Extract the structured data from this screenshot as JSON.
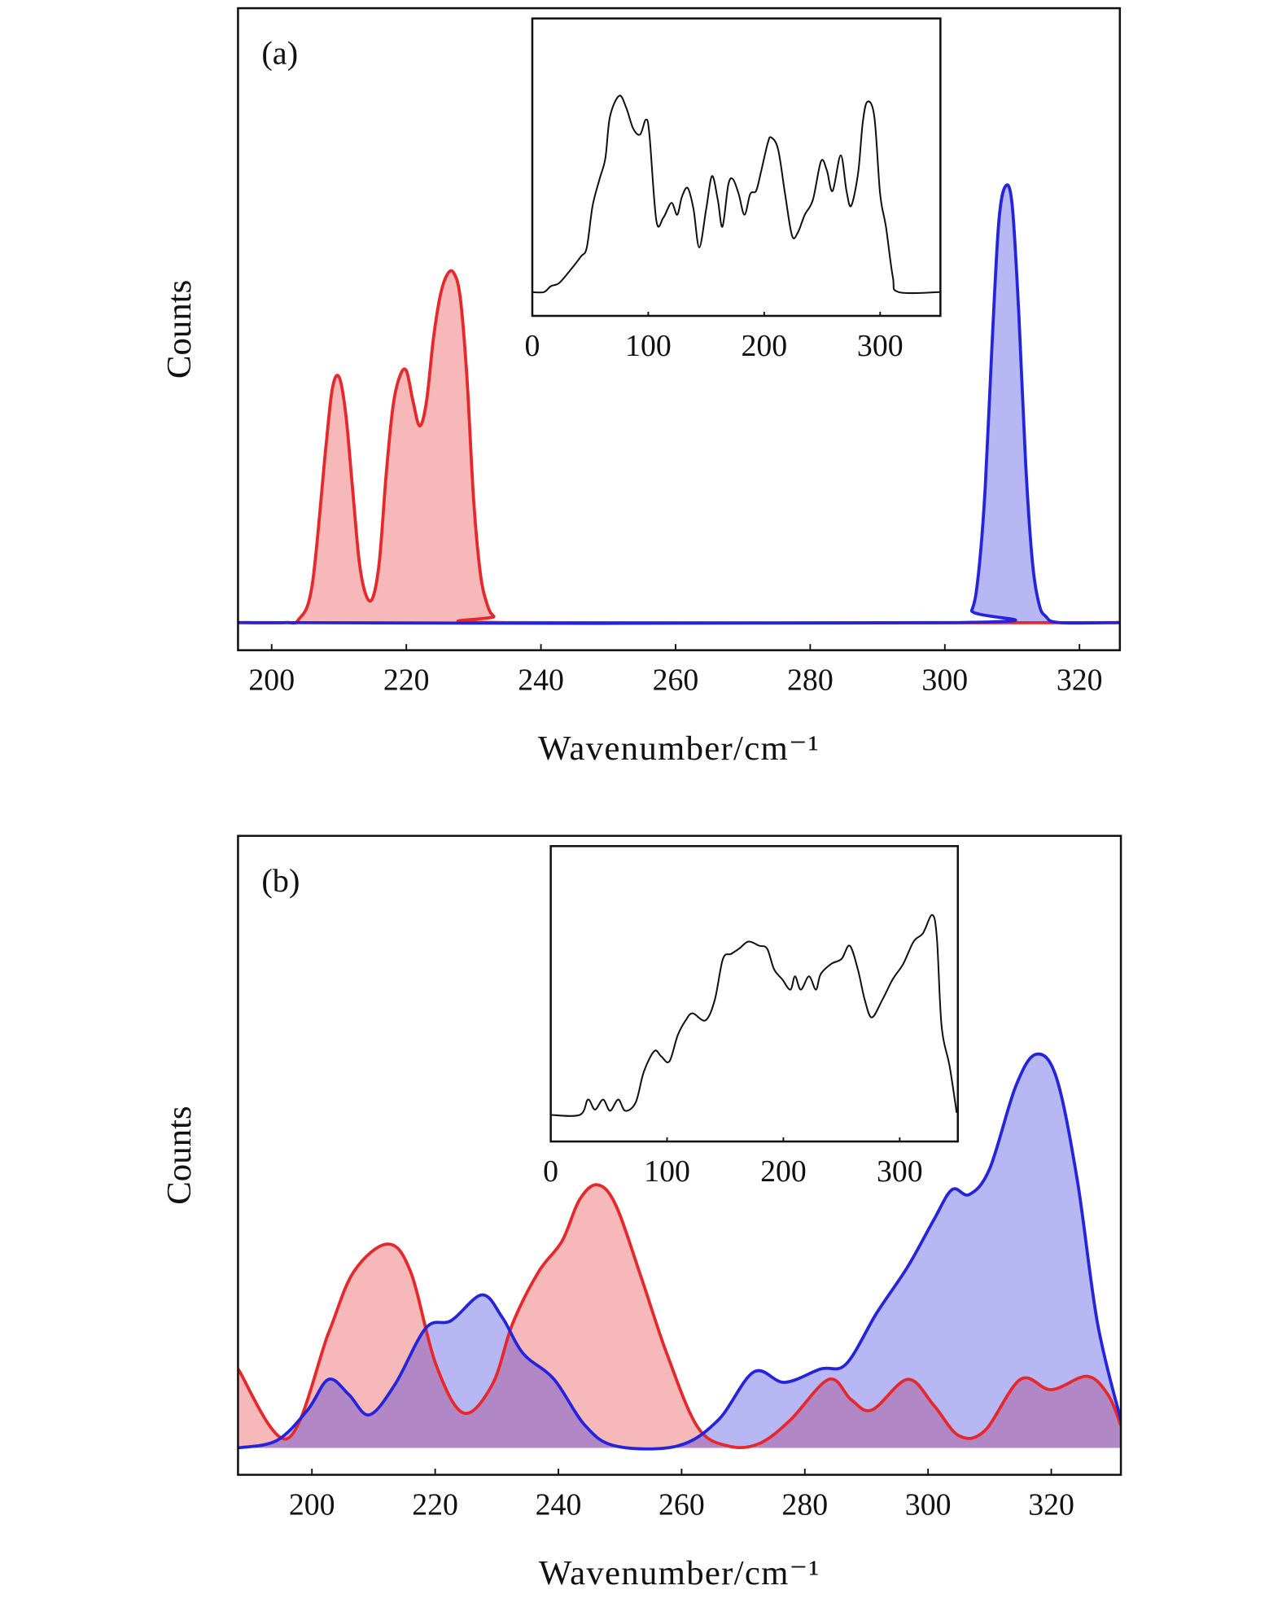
{
  "chart_data": [
    {
      "type": "area",
      "annotation": "(a)",
      "xlabel": "Wavenumber/cm⁻¹",
      "ylabel": "Counts",
      "xlim": [
        195,
        326
      ],
      "ylim": [
        -0.045,
        1
      ],
      "xticks": [
        200,
        220,
        240,
        260,
        280,
        300,
        320
      ],
      "series": [
        {
          "color": "#e8272a",
          "x": [
            195,
            202,
            204,
            206,
            208,
            209,
            210,
            211,
            212,
            213,
            214,
            215,
            216,
            217,
            218,
            219,
            220,
            221,
            222,
            223,
            224,
            225,
            226,
            227,
            228,
            229,
            230,
            231,
            232,
            233,
            235,
            326
          ],
          "values": [
            0,
            0,
            0.005,
            0.06,
            0.28,
            0.38,
            0.4,
            0.34,
            0.22,
            0.1,
            0.045,
            0.04,
            0.1,
            0.24,
            0.35,
            0.4,
            0.41,
            0.36,
            0.32,
            0.36,
            0.46,
            0.53,
            0.565,
            0.57,
            0.53,
            0.4,
            0.2,
            0.08,
            0.03,
            0.01,
            0,
            0
          ]
        },
        {
          "color": "#2424dd",
          "x": [
            195,
            302,
            304,
            305,
            306,
            307,
            308,
            309,
            310,
            311,
            312,
            313,
            314,
            315,
            317,
            326
          ],
          "values": [
            0,
            0,
            0.02,
            0.08,
            0.22,
            0.45,
            0.65,
            0.71,
            0.68,
            0.5,
            0.26,
            0.1,
            0.03,
            0.01,
            0,
            0
          ]
        }
      ]
    },
    {
      "type": "line",
      "xlim": [
        0,
        352
      ],
      "ylim": [
        0,
        1
      ],
      "xticks": [
        0,
        100,
        200,
        300
      ],
      "color": "#111111",
      "x": [
        0,
        10,
        16,
        23,
        32,
        42,
        47,
        52,
        58,
        63,
        67,
        75,
        81,
        87,
        93,
        98,
        101,
        107,
        113,
        120,
        125,
        129,
        134,
        139,
        144,
        150,
        155,
        160,
        164,
        169,
        173,
        178,
        183,
        188,
        193,
        197,
        203,
        206,
        212,
        218,
        224,
        229,
        235,
        242,
        249,
        254,
        259,
        266,
        271,
        275,
        281,
        285,
        289,
        295,
        300,
        305,
        311,
        316,
        352
      ],
      "values": [
        0.08,
        0.08,
        0.1,
        0.11,
        0.15,
        0.2,
        0.23,
        0.37,
        0.46,
        0.53,
        0.67,
        0.74,
        0.7,
        0.63,
        0.61,
        0.66,
        0.61,
        0.32,
        0.33,
        0.38,
        0.34,
        0.4,
        0.43,
        0.36,
        0.23,
        0.36,
        0.47,
        0.39,
        0.3,
        0.44,
        0.46,
        0.41,
        0.34,
        0.41,
        0.42,
        0.48,
        0.58,
        0.6,
        0.56,
        0.41,
        0.27,
        0.28,
        0.34,
        0.39,
        0.52,
        0.49,
        0.42,
        0.54,
        0.42,
        0.37,
        0.48,
        0.65,
        0.72,
        0.67,
        0.41,
        0.3,
        0.13,
        0.08,
        0.08
      ]
    },
    {
      "type": "area",
      "annotation": "(b)",
      "xlabel": "Wavenumber/cm⁻¹",
      "ylabel": "Counts",
      "xlim": [
        188,
        331.3
      ],
      "ylim": [
        -0.044,
        1
      ],
      "xticks": [
        200,
        220,
        240,
        260,
        280,
        300,
        320
      ],
      "series": [
        {
          "color": "#e8272a",
          "x": [
            188,
            196,
            202.7,
            206.8,
            212.3,
            216,
            220.1,
            224.6,
            229.3,
            232.6,
            236.8,
            240.6,
            243.4,
            246.3,
            249.3,
            253.4,
            257.6,
            262.6,
            267.6,
            272.6,
            277.6,
            283.9,
            287.5,
            290.9,
            296.7,
            300.9,
            305,
            309.2,
            315,
            320,
            325.8,
            329.2,
            331.3
          ],
          "values": [
            0.129,
            0.015,
            0.188,
            0.288,
            0.333,
            0.288,
            0.137,
            0.057,
            0.104,
            0.204,
            0.288,
            0.338,
            0.405,
            0.43,
            0.397,
            0.28,
            0.154,
            0.034,
            0.003,
            0.007,
            0.045,
            0.112,
            0.079,
            0.062,
            0.112,
            0.07,
            0.02,
            0.028,
            0.112,
            0.095,
            0.117,
            0.087,
            0.037
          ]
        },
        {
          "color": "#2424dd",
          "x": [
            188,
            194.3,
            199.3,
            202.7,
            206,
            209.3,
            213.5,
            218.5,
            222.6,
            227.6,
            230.9,
            234.3,
            239.3,
            244.3,
            249.3,
            259.3,
            265.9,
            271.7,
            276.7,
            282.6,
            286.7,
            291.7,
            296.7,
            300.9,
            303.9,
            306.7,
            310,
            314.2,
            317.5,
            320.8,
            324.2,
            327.5,
            331.3
          ],
          "values": [
            0,
            0.012,
            0.062,
            0.112,
            0.087,
            0.054,
            0.104,
            0.196,
            0.208,
            0.25,
            0.213,
            0.154,
            0.112,
            0.037,
            0.003,
            0.003,
            0.045,
            0.124,
            0.107,
            0.129,
            0.137,
            0.221,
            0.296,
            0.372,
            0.422,
            0.414,
            0.456,
            0.59,
            0.643,
            0.606,
            0.439,
            0.204,
            0.045
          ]
        }
      ]
    },
    {
      "type": "line",
      "xlim": [
        0,
        350
      ],
      "ylim": [
        0,
        1
      ],
      "xticks": [
        0,
        100,
        200,
        300
      ],
      "color": "#111111",
      "x": [
        0,
        25,
        32,
        38,
        45,
        51,
        58,
        64,
        73,
        80,
        89,
        95,
        102,
        109,
        116,
        122,
        133,
        141,
        148,
        155,
        162,
        170,
        179,
        186,
        192,
        199,
        206,
        210,
        215,
        222,
        228,
        232,
        241,
        250,
        257,
        264,
        270,
        276,
        285,
        294,
        303,
        312,
        320,
        328,
        332,
        336,
        343,
        349
      ],
      "values": [
        0.09,
        0.09,
        0.142,
        0.108,
        0.142,
        0.104,
        0.142,
        0.104,
        0.132,
        0.236,
        0.306,
        0.288,
        0.271,
        0.358,
        0.41,
        0.434,
        0.41,
        0.479,
        0.618,
        0.635,
        0.653,
        0.677,
        0.663,
        0.653,
        0.583,
        0.549,
        0.514,
        0.559,
        0.514,
        0.559,
        0.514,
        0.566,
        0.601,
        0.618,
        0.663,
        0.583,
        0.479,
        0.42,
        0.479,
        0.549,
        0.601,
        0.677,
        0.705,
        0.767,
        0.688,
        0.392,
        0.253,
        0.097
      ]
    }
  ]
}
